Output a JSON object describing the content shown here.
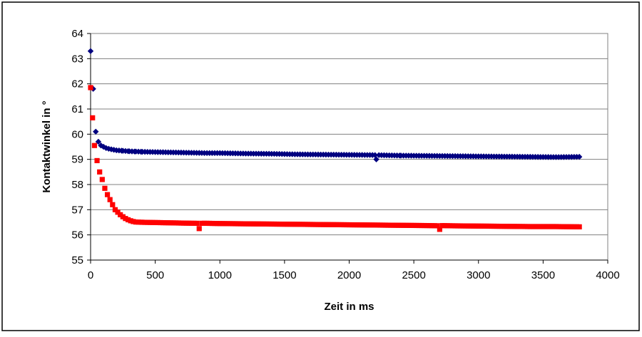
{
  "chart_data": {
    "type": "scatter",
    "title": "",
    "xlabel": "Zeit in ms",
    "ylabel": "Kontaktwinkel in °",
    "xlim": [
      0,
      4000
    ],
    "ylim": [
      55,
      64
    ],
    "xticks": [
      "0",
      "500",
      "1000",
      "1500",
      "2000",
      "2500",
      "3000",
      "3500",
      "4000"
    ],
    "yticks": [
      "55",
      "56",
      "57",
      "58",
      "59",
      "60",
      "61",
      "62",
      "63",
      "64"
    ],
    "grid": "horizontal",
    "legend": "none",
    "series": [
      {
        "marker": "diamond",
        "color": "#000080",
        "points": [
          [
            0,
            63.3
          ],
          [
            20,
            61.8
          ],
          [
            40,
            60.1
          ],
          [
            60,
            59.7
          ],
          [
            80,
            59.55
          ],
          [
            100,
            59.5
          ],
          [
            120,
            59.45
          ],
          [
            140,
            59.42
          ],
          [
            160,
            59.4
          ],
          [
            180,
            59.38
          ],
          [
            200,
            59.36
          ],
          [
            250,
            59.34
          ],
          [
            300,
            59.32
          ],
          [
            350,
            59.31
          ],
          [
            400,
            59.3
          ],
          [
            500,
            59.29
          ],
          [
            600,
            59.28
          ],
          [
            700,
            59.27
          ],
          [
            800,
            59.26
          ],
          [
            900,
            59.25
          ],
          [
            1000,
            59.25
          ],
          [
            1200,
            59.23
          ],
          [
            1400,
            59.22
          ],
          [
            1600,
            59.2
          ],
          [
            1800,
            59.19
          ],
          [
            2000,
            59.18
          ],
          [
            2200,
            59.17
          ],
          [
            2210,
            59.0
          ],
          [
            2400,
            59.15
          ],
          [
            2600,
            59.14
          ],
          [
            2800,
            59.13
          ],
          [
            3000,
            59.12
          ],
          [
            3200,
            59.11
          ],
          [
            3400,
            59.1
          ],
          [
            3600,
            59.09
          ],
          [
            3780,
            59.1
          ]
        ]
      },
      {
        "marker": "square",
        "color": "#ff0000",
        "points": [
          [
            0,
            61.85
          ],
          [
            15,
            60.65
          ],
          [
            30,
            59.55
          ],
          [
            50,
            58.95
          ],
          [
            70,
            58.5
          ],
          [
            90,
            58.2
          ],
          [
            110,
            57.85
          ],
          [
            130,
            57.6
          ],
          [
            150,
            57.4
          ],
          [
            170,
            57.2
          ],
          [
            190,
            57.0
          ],
          [
            210,
            56.9
          ],
          [
            230,
            56.8
          ],
          [
            250,
            56.72
          ],
          [
            270,
            56.65
          ],
          [
            290,
            56.6
          ],
          [
            310,
            56.56
          ],
          [
            330,
            56.53
          ],
          [
            350,
            56.51
          ],
          [
            400,
            56.5
          ],
          [
            500,
            56.49
          ],
          [
            600,
            56.48
          ],
          [
            700,
            56.47
          ],
          [
            800,
            56.46
          ],
          [
            840,
            56.25
          ],
          [
            900,
            56.46
          ],
          [
            1000,
            56.45
          ],
          [
            1200,
            56.44
          ],
          [
            1400,
            56.43
          ],
          [
            1600,
            56.42
          ],
          [
            1800,
            56.41
          ],
          [
            2000,
            56.4
          ],
          [
            2200,
            56.39
          ],
          [
            2400,
            56.38
          ],
          [
            2600,
            56.37
          ],
          [
            2700,
            56.22
          ],
          [
            2800,
            56.36
          ],
          [
            3000,
            56.35
          ],
          [
            3200,
            56.34
          ],
          [
            3400,
            56.33
          ],
          [
            3600,
            56.33
          ],
          [
            3780,
            56.32
          ]
        ]
      }
    ]
  }
}
